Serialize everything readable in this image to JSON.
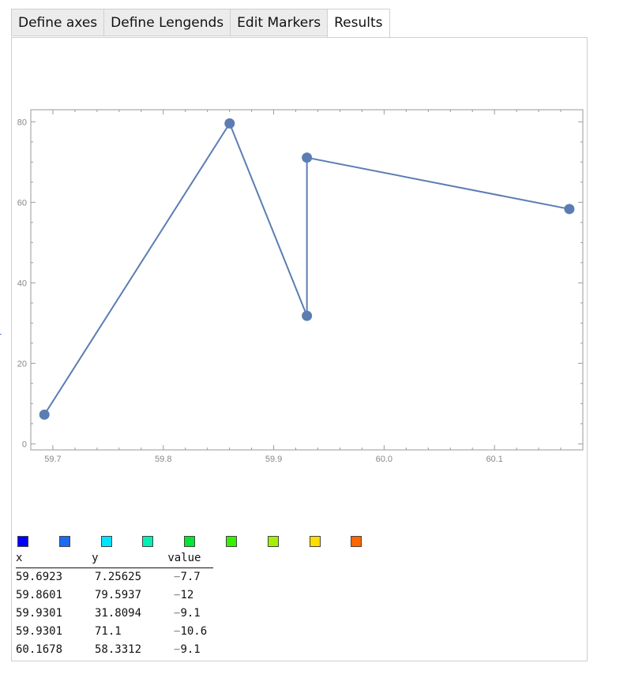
{
  "tabs": [
    {
      "label": "Define axes"
    },
    {
      "label": "Define Lengends"
    },
    {
      "label": "Edit Markers"
    },
    {
      "label": "Results",
      "active": true
    }
  ],
  "colors": {
    "series": "#5b7db3",
    "legend_swatches": [
      "#0000ff",
      "#1a6cf2",
      "#00e5ff",
      "#00f0b4",
      "#00e632",
      "#36f000",
      "#a4f000",
      "#ffdd00",
      "#ff6600"
    ]
  },
  "chart_data": {
    "type": "line",
    "x": [
      59.6923,
      59.8601,
      59.9301,
      59.9301,
      60.1678
    ],
    "y": [
      7.25625,
      79.5937,
      31.8094,
      71.1,
      58.3312
    ],
    "xlim": [
      59.68,
      60.18
    ],
    "ylim": [
      -1.5,
      83
    ],
    "xticks": [
      59.7,
      59.8,
      59.9,
      60.0,
      60.1
    ],
    "xtick_labels": [
      "59.7",
      "59.8",
      "59.9",
      "60.0",
      "60.1"
    ],
    "yticks": [
      0,
      20,
      40,
      60,
      80
    ],
    "ytick_labels": [
      "0",
      "20",
      "40",
      "60",
      "80"
    ],
    "grid": false,
    "markers": true
  },
  "table": {
    "headers": [
      "x",
      "y",
      "value"
    ],
    "rows": [
      [
        "59.6923",
        "7.25625",
        "7.7"
      ],
      [
        "59.8601",
        "79.5937",
        "12"
      ],
      [
        "59.9301",
        "31.8094",
        "9.1"
      ],
      [
        "59.9301",
        "71.1",
        "10.6"
      ],
      [
        "60.1678",
        "58.3312",
        "9.1"
      ]
    ],
    "value_sign": "−"
  }
}
